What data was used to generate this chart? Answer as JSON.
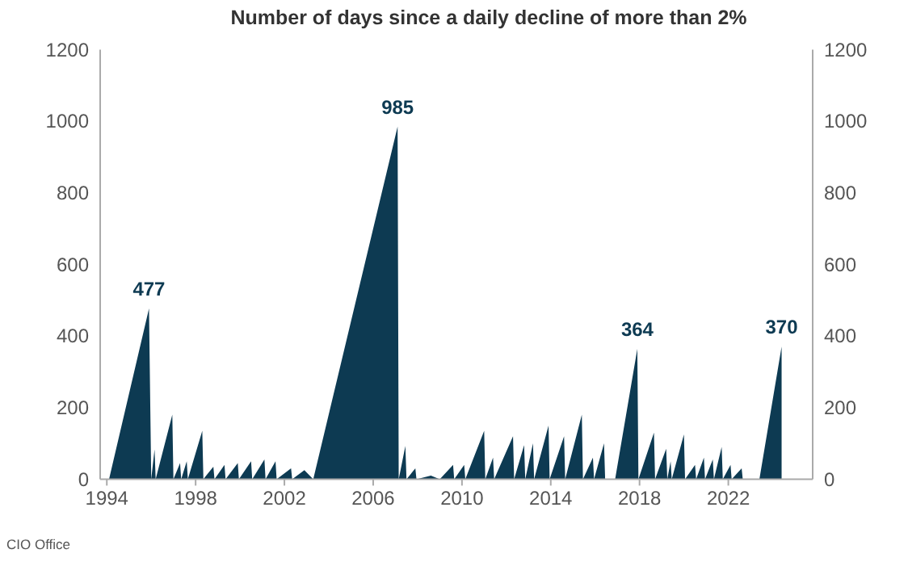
{
  "chart_data": {
    "type": "area",
    "title": "Number of days since a daily decline of more than 2%",
    "x": [
      1994.1,
      1995.9,
      1996.0,
      1996.15,
      1996.2,
      1996.95,
      1997.0,
      1997.3,
      1997.35,
      1997.6,
      1997.65,
      1998.3,
      1998.35,
      1998.8,
      1998.85,
      1999.3,
      1999.35,
      1999.9,
      1999.95,
      2000.5,
      2000.55,
      2001.1,
      2001.15,
      2001.6,
      2001.65,
      2002.3,
      2002.35,
      2002.9,
      2003.3,
      2007.1,
      2007.15,
      2007.45,
      2007.5,
      2007.9,
      2007.95,
      2008.6,
      2009.0,
      2009.6,
      2009.65,
      2010.1,
      2010.15,
      2011.0,
      2011.05,
      2011.4,
      2011.45,
      2012.3,
      2012.35,
      2012.8,
      2012.85,
      2013.2,
      2013.25,
      2013.9,
      2013.95,
      2014.6,
      2014.65,
      2015.4,
      2015.45,
      2015.9,
      2015.95,
      2016.4,
      2016.45,
      2016.9,
      2017.9,
      2017.95,
      2018.65,
      2018.7,
      2019.2,
      2019.25,
      2019.4,
      2019.45,
      2020.0,
      2020.05,
      2020.5,
      2020.55,
      2020.9,
      2020.95,
      2021.3,
      2021.35,
      2021.7,
      2021.75,
      2022.1,
      2022.15,
      2022.6,
      2022.65,
      2023.4,
      2024.4
    ],
    "values": [
      0,
      477,
      0,
      83,
      0,
      180,
      0,
      45,
      0,
      50,
      0,
      135,
      0,
      35,
      0,
      40,
      0,
      45,
      0,
      50,
      0,
      55,
      0,
      50,
      0,
      30,
      0,
      25,
      0,
      985,
      0,
      93,
      0,
      30,
      0,
      10,
      0,
      40,
      0,
      40,
      0,
      135,
      0,
      60,
      0,
      120,
      0,
      95,
      0,
      100,
      0,
      150,
      0,
      120,
      0,
      180,
      0,
      60,
      0,
      100,
      0,
      0,
      364,
      0,
      130,
      0,
      85,
      0,
      50,
      0,
      125,
      0,
      40,
      0,
      60,
      0,
      55,
      0,
      90,
      0,
      40,
      0,
      30,
      0,
      0,
      370
    ],
    "color": "#0d3a52",
    "xlim": [
      1993.7,
      2025.8
    ],
    "xticks": [
      1994,
      1998,
      2002,
      2006,
      2010,
      2014,
      2018,
      2022
    ],
    "ylim": [
      0,
      1200
    ],
    "yticks": [
      0,
      200,
      400,
      600,
      800,
      1000,
      1200
    ],
    "y2lim": [
      0,
      1200
    ],
    "y2ticks": [
      0,
      200,
      400,
      600,
      800,
      1000,
      1200
    ],
    "grid": false,
    "annotations": [
      {
        "text": "477",
        "x": 1995.9,
        "y": 477
      },
      {
        "text": "985",
        "x": 2007.1,
        "y": 985
      },
      {
        "text": "364",
        "x": 2017.9,
        "y": 364
      },
      {
        "text": "370",
        "x": 2024.4,
        "y": 370
      },
      "CIO Office"
    ]
  }
}
